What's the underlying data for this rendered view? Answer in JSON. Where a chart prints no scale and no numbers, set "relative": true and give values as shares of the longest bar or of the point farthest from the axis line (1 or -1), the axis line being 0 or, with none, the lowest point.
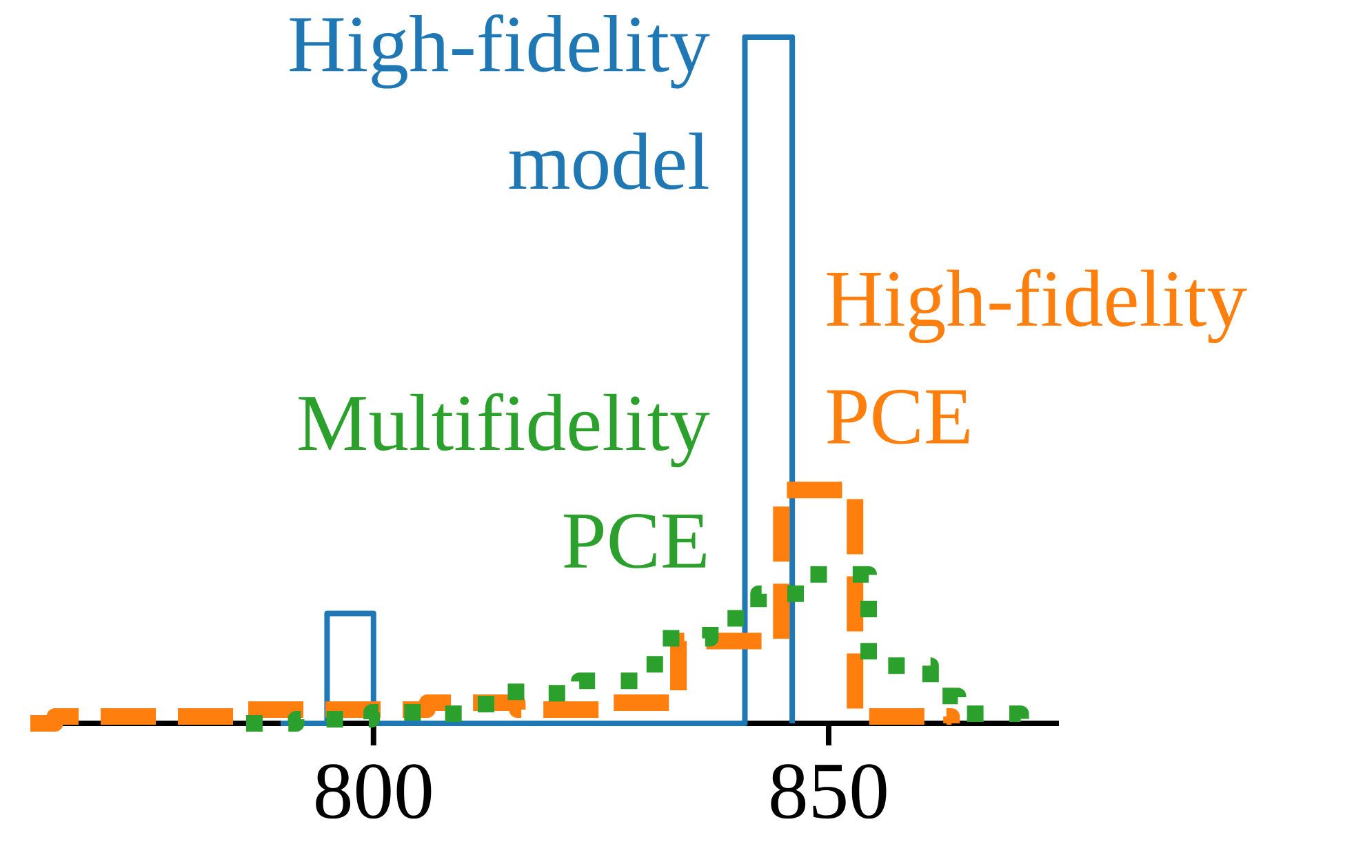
{
  "chart_data": {
    "type": "step",
    "relative": true,
    "xlim": [
      762.3,
      875.3
    ],
    "xticks": [
      800,
      850
    ],
    "series": [
      {
        "name": "High-fidelity model",
        "color": "#1f77b4",
        "line_style": "solid",
        "x": [
          789.8,
          794.9,
          800.0,
          805.1,
          810.2,
          815.3,
          820.4,
          825.5,
          830.6,
          835.7,
          840.8,
          846.0
        ],
        "values": [
          0,
          0.16,
          0,
          0,
          0,
          0,
          0,
          0,
          0,
          0,
          1.0,
          0
        ]
      },
      {
        "name": "High-fidelity PCE",
        "color": "#ff7f0e",
        "line_style": "dashed",
        "x": [
          762.3,
          765.0,
          774.8,
          785.5,
          796.1,
          805.9,
          815.8,
          825.6,
          833.5,
          844.8,
          852.9,
          863.5
        ],
        "values": [
          0,
          0.01,
          0.01,
          0.02,
          0.02,
          0.03,
          0.02,
          0.03,
          0.12,
          0.34,
          0.01,
          0
        ]
      },
      {
        "name": "Multifidelity PCE",
        "color": "#2ca02c",
        "line_style": "dotted",
        "x": [
          786.0,
          791.5,
          799.8,
          805.2,
          809.7,
          813.5,
          818.0,
          822.6,
          830.9,
          837.0,
          842.3,
          847.6,
          854.4,
          861.2,
          864.2,
          871.1
        ],
        "values": [
          0,
          0.006,
          0.016,
          0.014,
          0.028,
          0.046,
          0.044,
          0.062,
          0.124,
          0.153,
          0.189,
          0.217,
          0.084,
          0.04,
          0.014,
          0
        ]
      }
    ]
  }
}
